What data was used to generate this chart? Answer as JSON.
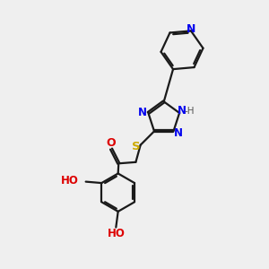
{
  "bg_color": "#efefef",
  "bond_color": "#1a1a1a",
  "N_color": "#0000ee",
  "O_color": "#dd0000",
  "S_color": "#ccaa00",
  "H_color": "#555555",
  "lw": 1.6,
  "dbo": 0.038,
  "figsize": [
    3.0,
    3.0
  ],
  "dpi": 100,
  "xlim": [
    0,
    10
  ],
  "ylim": [
    0,
    10
  ]
}
